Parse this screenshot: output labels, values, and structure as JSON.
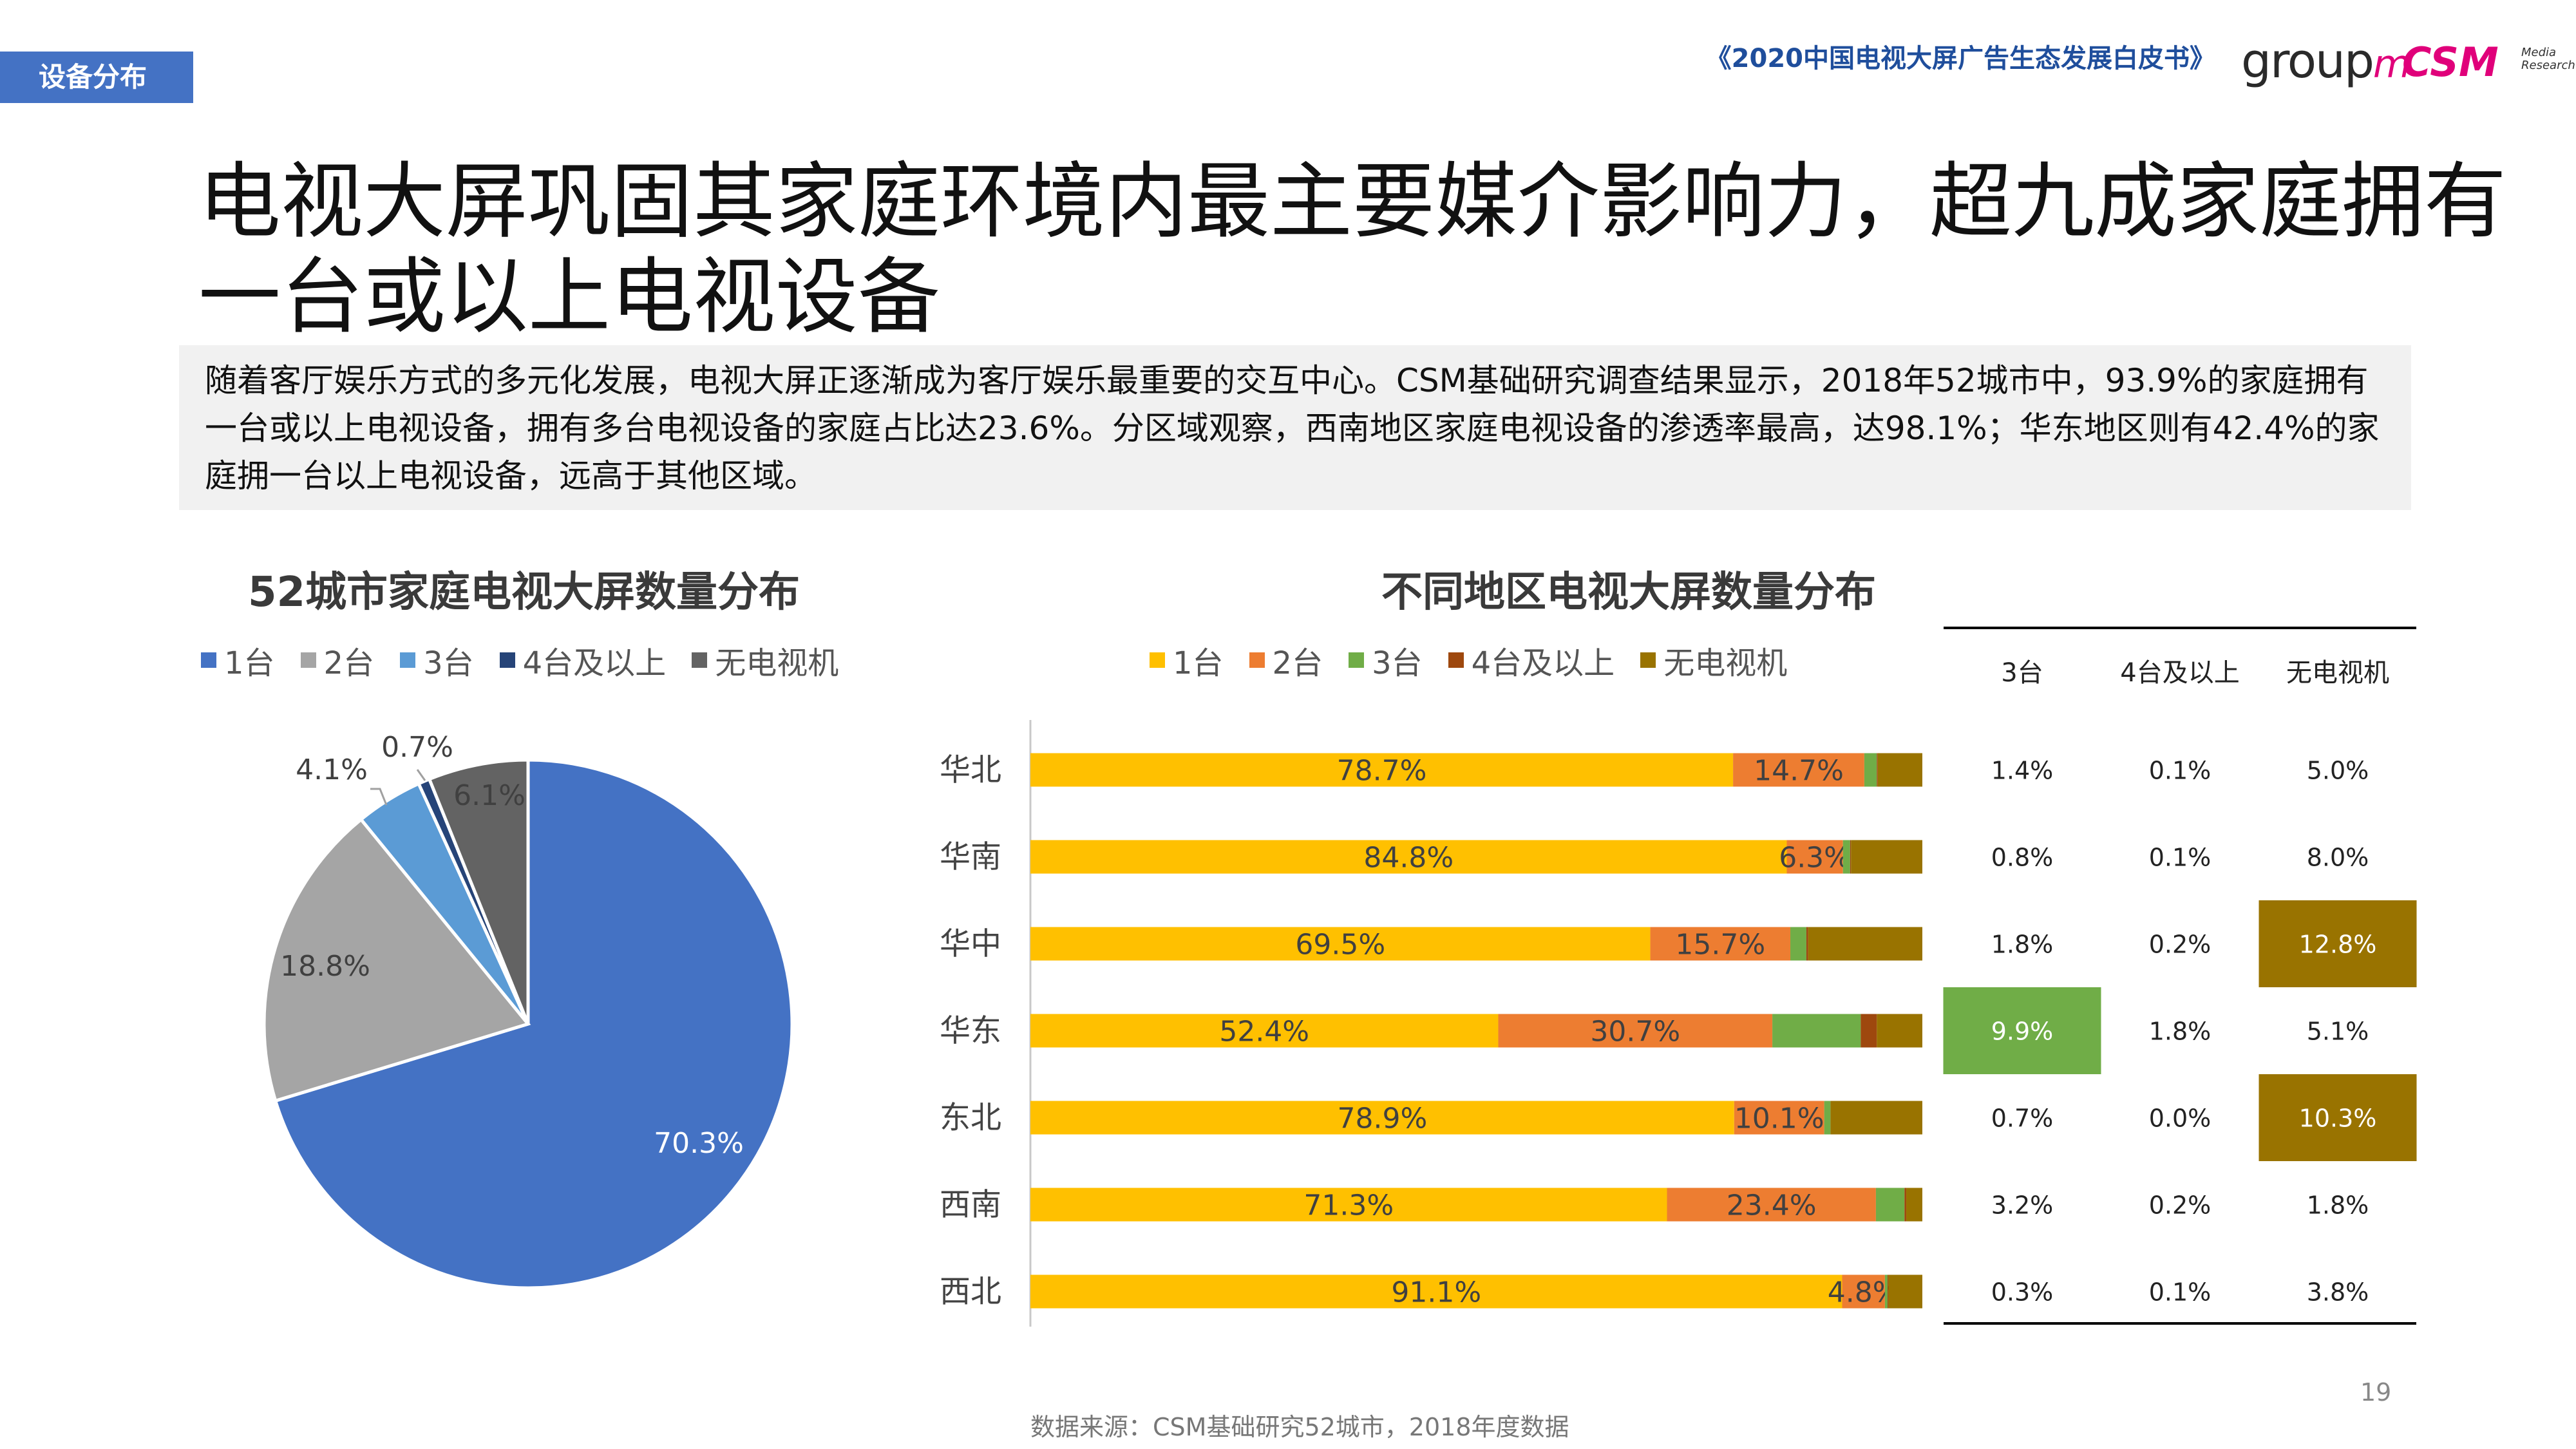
{
  "header": {
    "section_tag": "设备分布",
    "report_title": "《2020中国电视大屏广告生态发展白皮书》",
    "logo_groupm_text": "group",
    "logo_groupm_m": "m",
    "logo_csm_text": "CSM",
    "logo_csm_sub": "Media Research"
  },
  "title": "电视大屏巩固其家庭环境内最主要媒介影响力，超九成家庭拥有一台或以上电视设备",
  "description": "随着客厅娱乐方式的多元化发展，电视大屏正逐渐成为客厅娱乐最重要的交互中心。CSM基础研究调查结果显示，2018年52城市中，93.9%的家庭拥有一台或以上电视设备，拥有多台电视设备的家庭占比达23.6%。分区域观察，西南地区家庭电视设备的渗透率最高，达98.1%；华东地区则有42.4%的家庭拥一台以上电视设备，远高于其他区域。",
  "colors": {
    "accent": "#4472c4",
    "pie": [
      "#4472c4",
      "#a5a5a5",
      "#5b9bd5",
      "#264478",
      "#636363"
    ],
    "bar": [
      "#ffc000",
      "#ed7d31",
      "#70ad47",
      "#9e480e",
      "#997300"
    ],
    "highlight_green": "#70ad47",
    "highlight_olive": "#997300"
  },
  "chart_data": [
    {
      "type": "pie",
      "title": "52城市家庭电视大屏数量分布",
      "categories": [
        "1台",
        "2台",
        "3台",
        "4台及以上",
        "无电视机"
      ],
      "values": [
        70.3,
        18.8,
        4.1,
        0.7,
        6.1
      ],
      "labels": [
        "70.3%",
        "18.8%",
        "4.1%",
        "0.7%",
        "6.1%"
      ],
      "legend_position": "top"
    },
    {
      "type": "bar",
      "orientation": "horizontal-stacked-100",
      "title": "不同地区电视大屏数量分布",
      "categories": [
        "华北",
        "华南",
        "华中",
        "华东",
        "东北",
        "西南",
        "西北"
      ],
      "series": [
        {
          "name": "1台",
          "values": [
            78.7,
            84.8,
            69.5,
            52.4,
            78.9,
            71.3,
            91.1
          ]
        },
        {
          "name": "2台",
          "values": [
            14.7,
            6.3,
            15.7,
            30.7,
            10.1,
            23.4,
            4.8
          ]
        },
        {
          "name": "3台",
          "values": [
            1.4,
            0.8,
            1.8,
            9.9,
            0.7,
            3.2,
            0.3
          ]
        },
        {
          "name": "4台及以上",
          "values": [
            0.1,
            0.1,
            0.2,
            1.8,
            0.0,
            0.2,
            0.1
          ]
        },
        {
          "name": "无电视机",
          "values": [
            5.0,
            8.0,
            12.8,
            5.1,
            10.3,
            1.8,
            3.8
          ]
        }
      ],
      "data_labels_series": [
        "1台",
        "2台"
      ],
      "legend_position": "top"
    },
    {
      "type": "table",
      "columns": [
        "3台",
        "4台及以上",
        "无电视机"
      ],
      "rows": [
        [
          "1.4%",
          "0.1%",
          "5.0%"
        ],
        [
          "0.8%",
          "0.1%",
          "8.0%"
        ],
        [
          "1.8%",
          "0.2%",
          "12.8%"
        ],
        [
          "9.9%",
          "1.8%",
          "5.1%"
        ],
        [
          "0.7%",
          "0.0%",
          "10.3%"
        ],
        [
          "3.2%",
          "0.2%",
          "1.8%"
        ],
        [
          "0.3%",
          "0.1%",
          "3.8%"
        ]
      ],
      "highlighted_cells": [
        {
          "row": 2,
          "col": 2,
          "color": "#997300"
        },
        {
          "row": 3,
          "col": 0,
          "color": "#70ad47"
        },
        {
          "row": 4,
          "col": 2,
          "color": "#997300"
        }
      ]
    }
  ],
  "footer": {
    "source": "数据来源：CSM基础研究52城市，2018年度数据",
    "page_number": "19"
  }
}
